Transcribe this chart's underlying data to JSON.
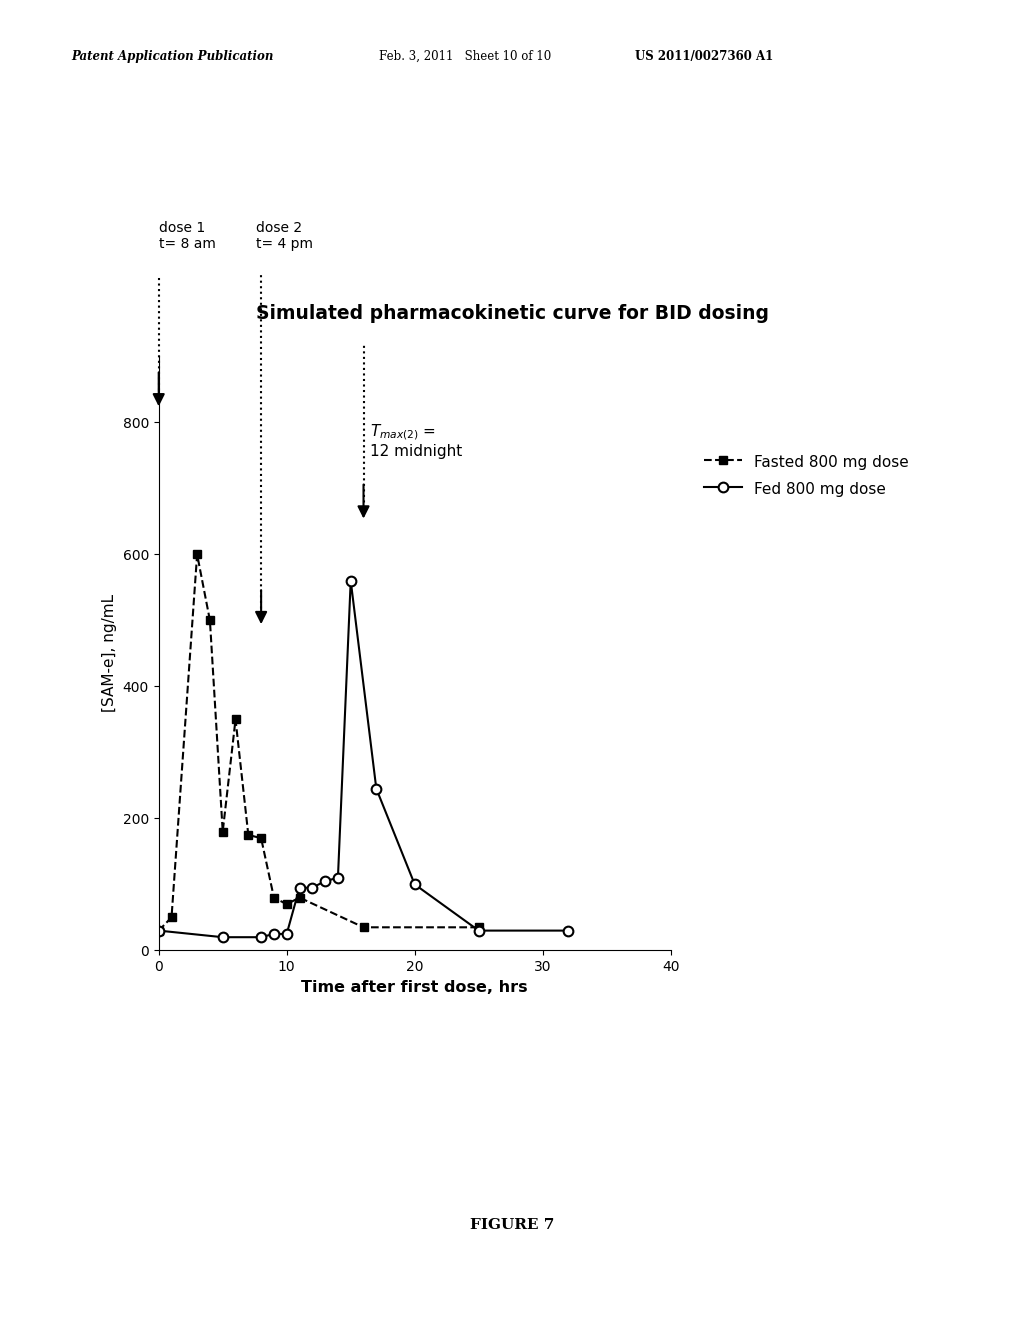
{
  "title": "Simulated pharmacokinetic curve for BID dosing",
  "xlabel": "Time after first dose, hrs",
  "ylabel": "[SAM-e], ng/mL",
  "xlim": [
    0,
    40
  ],
  "ylim": [
    0,
    900
  ],
  "xticks": [
    0,
    10,
    20,
    30,
    40
  ],
  "yticks": [
    0,
    200,
    400,
    600,
    800
  ],
  "fasted_x": [
    0,
    1,
    3,
    4,
    5,
    6,
    7,
    8,
    9,
    10,
    11,
    16,
    25
  ],
  "fasted_y": [
    30,
    50,
    600,
    500,
    180,
    350,
    175,
    170,
    80,
    70,
    80,
    35,
    35
  ],
  "fed_x": [
    0,
    5,
    8,
    9,
    10,
    11,
    12,
    13,
    14,
    15,
    17,
    20,
    25,
    32
  ],
  "fed_y": [
    30,
    20,
    20,
    25,
    25,
    95,
    95,
    105,
    110,
    560,
    245,
    100,
    30,
    30
  ],
  "dose1_x": 0,
  "dose2_x": 8,
  "tmax2_x": 16,
  "legend_fasted": "Fasted 800 mg dose",
  "legend_fed": "Fed 800 mg dose",
  "header_left": "Patent Application Publication",
  "header_mid": "Feb. 3, 2011   Sheet 10 of 10",
  "header_right": "US 2011/0027360 A1",
  "figure_label": "FIGURE 7",
  "background_color": "#ffffff",
  "line_color": "#000000"
}
